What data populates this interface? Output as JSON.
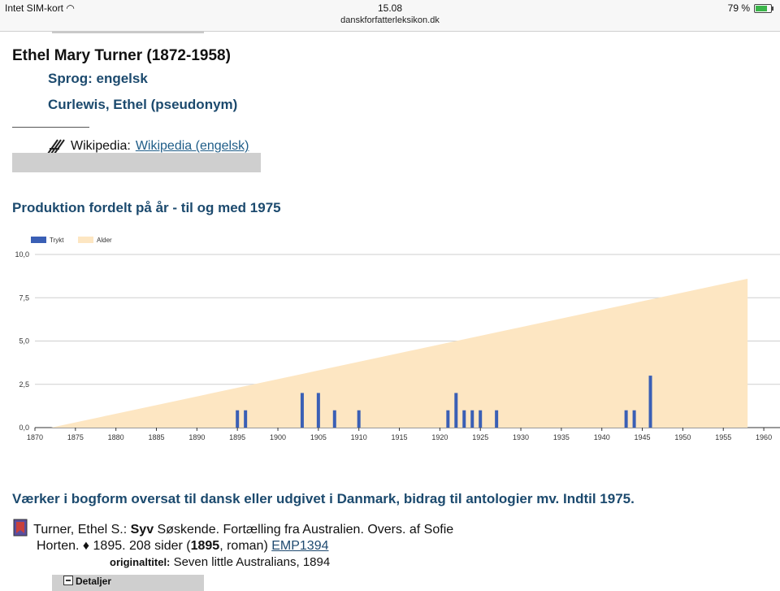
{
  "status": {
    "carrier": "Intet SIM-kort",
    "time": "15.08",
    "url": "danskforfatterleksikon.dk",
    "battery": "79 %"
  },
  "author": {
    "name": "Ethel Mary Turner (1872-1958)",
    "language": "Sprog: engelsk",
    "pseudonym": "Curlewis, Ethel (pseudonym)"
  },
  "wiki": {
    "label": "Wikipedia:",
    "link": "Wikipedia (engelsk)"
  },
  "production": {
    "title": "Produktion fordelt på år - til og med 1975"
  },
  "chart_data": {
    "type": "bar",
    "series": [
      {
        "name": "Trykt",
        "color": "#3a5fb5",
        "points": [
          [
            1895,
            1
          ],
          [
            1896,
            1
          ],
          [
            1903,
            2
          ],
          [
            1905,
            2
          ],
          [
            1907,
            1
          ],
          [
            1910,
            1
          ],
          [
            1921,
            1
          ],
          [
            1922,
            2
          ],
          [
            1923,
            1
          ],
          [
            1924,
            1
          ],
          [
            1925,
            1
          ],
          [
            1927,
            1
          ],
          [
            1943,
            1
          ],
          [
            1944,
            1
          ],
          [
            1946,
            3
          ]
        ]
      },
      {
        "name": "Alder",
        "type": "area",
        "color": "#fde6c2",
        "points": [
          [
            1872,
            0
          ],
          [
            1958,
            8.6
          ]
        ]
      }
    ],
    "xlim": [
      1870,
      1962
    ],
    "ylim": [
      0,
      10
    ],
    "xticks": [
      "1870",
      "1875",
      "1880",
      "1885",
      "1890",
      "1895",
      "1900",
      "1905",
      "1910",
      "1915",
      "1920",
      "1925",
      "1930",
      "1935",
      "1940",
      "1945",
      "1950",
      "1955",
      "1960"
    ],
    "yticks": [
      "0,0",
      "2,5",
      "5,0",
      "7,5",
      "10,0"
    ],
    "grid": true,
    "legend": "top-left"
  },
  "works": {
    "title": "Værker i bogform oversat til dansk eller udgivet i Danmark, bidrag til antologier mv. Indtil 1975.",
    "item": {
      "author": "Turner, Ethel S.:",
      "title_bold": "Syv",
      "title_rest": "Søskende. Fortælling fra Australien. Overs. af Sofie",
      "line2_pre": "Horten. ♦ 1895. 208 sider (",
      "year": "1895",
      "line2_post": ", roman)",
      "code": "EMP1394",
      "orig_label": "originaltitel:",
      "orig_value": "Seven little Australians, 1894"
    },
    "details": "Detaljer"
  }
}
